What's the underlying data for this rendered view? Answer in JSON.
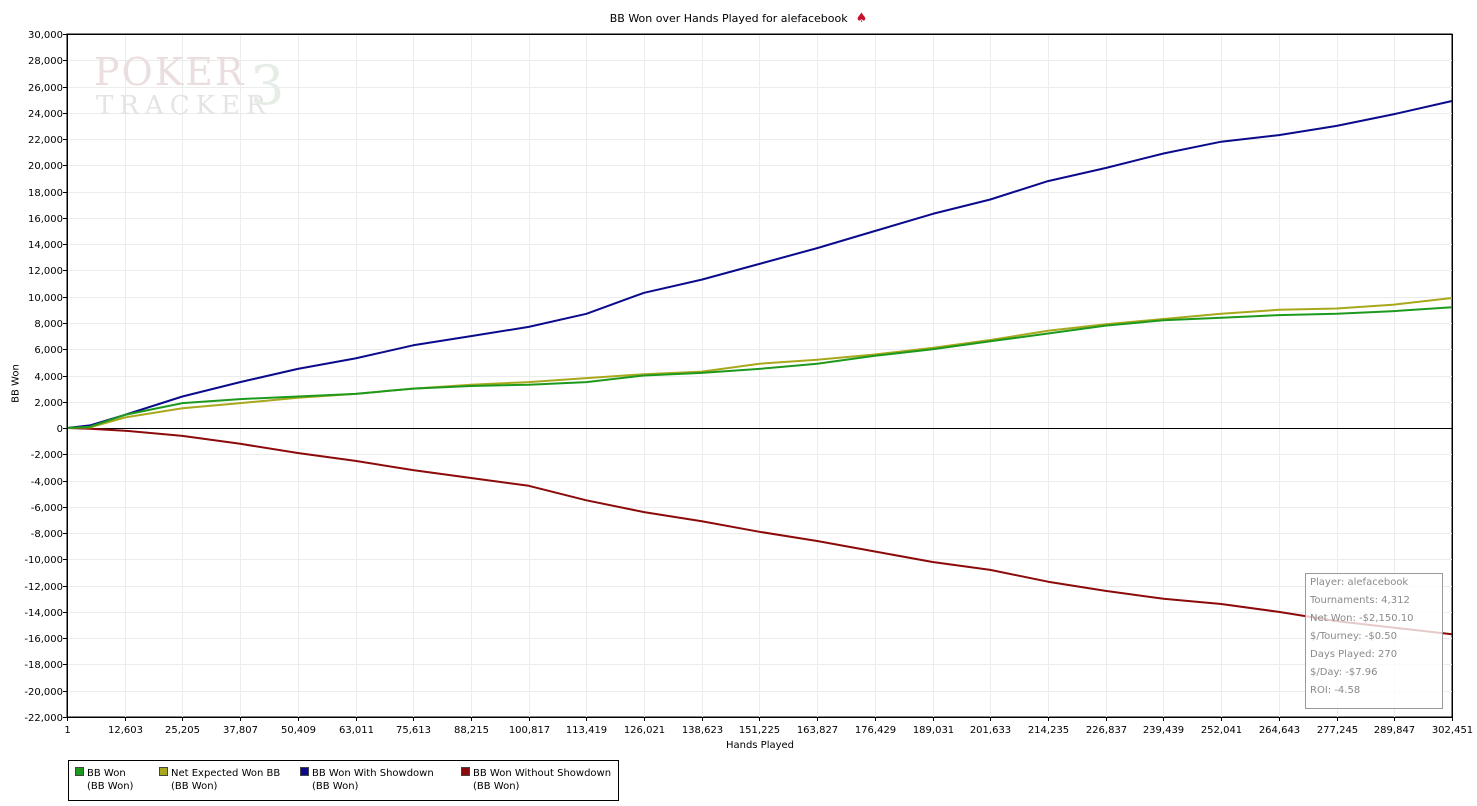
{
  "header": {
    "title": "BB Won over Hands Played for alefacebook",
    "suit_icon": "♠"
  },
  "watermark": {
    "line1": "POKER",
    "line2": "TRACKER",
    "mark": "3"
  },
  "stats": {
    "player": "Player: alefacebook",
    "tournaments": "Tournaments: 4,312",
    "net_won": "Net Won: -$2,150.10",
    "per_tourney": "$/Tourney: -$0.50",
    "days_played": "Days Played: 270",
    "per_day": "$/Day: -$7.96",
    "roi": "ROI: -4.58"
  },
  "legend": [
    {
      "name": "BB Won",
      "sub": "(BB Won)",
      "color": "#1d9a1d"
    },
    {
      "name": "Net Expected Won BB",
      "sub": "(BB Won)",
      "color": "#a8a81c"
    },
    {
      "name": "BB Won With Showdown",
      "sub": "(BB Won)",
      "color": "#0a0a8c"
    },
    {
      "name": "BB Won Without Showdown",
      "sub": "(BB Won)",
      "color": "#8c0a0a"
    }
  ],
  "chart_data": {
    "type": "line",
    "title": "BB Won over Hands Played for alefacebook",
    "xlabel": "Hands Played",
    "ylabel": "BB Won",
    "xlim": [
      1,
      302451
    ],
    "ylim": [
      -22000,
      30000
    ],
    "x_ticks": [
      "1",
      "12,603",
      "25,205",
      "37,807",
      "50,409",
      "63,011",
      "75,613",
      "88,215",
      "100,817",
      "113,419",
      "126,021",
      "138,623",
      "151,225",
      "163,827",
      "176,429",
      "189,031",
      "201,633",
      "214,235",
      "226,837",
      "239,439",
      "252,041",
      "264,643",
      "277,245",
      "289,847",
      "302,451"
    ],
    "y_ticks": [
      "30,000",
      "28,000",
      "26,000",
      "24,000",
      "22,000",
      "20,000",
      "18,000",
      "16,000",
      "14,000",
      "12,000",
      "10,000",
      "8,000",
      "6,000",
      "4,000",
      "2,000",
      "0",
      "-2,000",
      "-4,000",
      "-6,000",
      "-8,000",
      "-10,000",
      "-12,000",
      "-14,000",
      "-16,000",
      "-18,000",
      "-20,000",
      "-22,000"
    ],
    "grid": true,
    "legend_position": "bottom-left",
    "x": [
      1,
      5000,
      12603,
      25205,
      37807,
      50409,
      63011,
      75613,
      88215,
      100817,
      113419,
      126021,
      138623,
      151225,
      163827,
      176429,
      189031,
      201633,
      214235,
      226837,
      239439,
      252041,
      264643,
      277245,
      289847,
      302451
    ],
    "series": [
      {
        "name": "BB Won",
        "color": "#1d9a1d",
        "values": [
          0,
          100,
          1000,
          1900,
          2200,
          2400,
          2600,
          3000,
          3200,
          3300,
          3500,
          4000,
          4200,
          4500,
          4900,
          5500,
          6000,
          6600,
          7200,
          7800,
          8200,
          8400,
          8600,
          8700,
          8900,
          9200
        ]
      },
      {
        "name": "Net Expected Won BB",
        "color": "#a8a81c",
        "values": [
          0,
          50,
          800,
          1500,
          1900,
          2300,
          2600,
          3000,
          3300,
          3500,
          3800,
          4100,
          4300,
          4900,
          5200,
          5600,
          6100,
          6700,
          7400,
          7900,
          8300,
          8700,
          9000,
          9100,
          9400,
          9900
        ]
      },
      {
        "name": "BB Won With Showdown",
        "color": "#0a0a8c",
        "values": [
          0,
          200,
          1000,
          2400,
          3500,
          4500,
          5300,
          6300,
          7000,
          7700,
          8700,
          10300,
          11300,
          12500,
          13700,
          15000,
          16300,
          17400,
          18800,
          19800,
          20900,
          21800,
          22300,
          23000,
          23900,
          24900
        ]
      },
      {
        "name": "BB Won Without Showdown",
        "color": "#8c0a0a",
        "values": [
          0,
          -50,
          -200,
          -600,
          -1200,
          -1900,
          -2500,
          -3200,
          -3800,
          -4400,
          -5500,
          -6400,
          -7100,
          -7900,
          -8600,
          -9400,
          -10200,
          -10800,
          -11700,
          -12400,
          -13000,
          -13400,
          -14000,
          -14700,
          -15200,
          -15700
        ]
      }
    ]
  }
}
